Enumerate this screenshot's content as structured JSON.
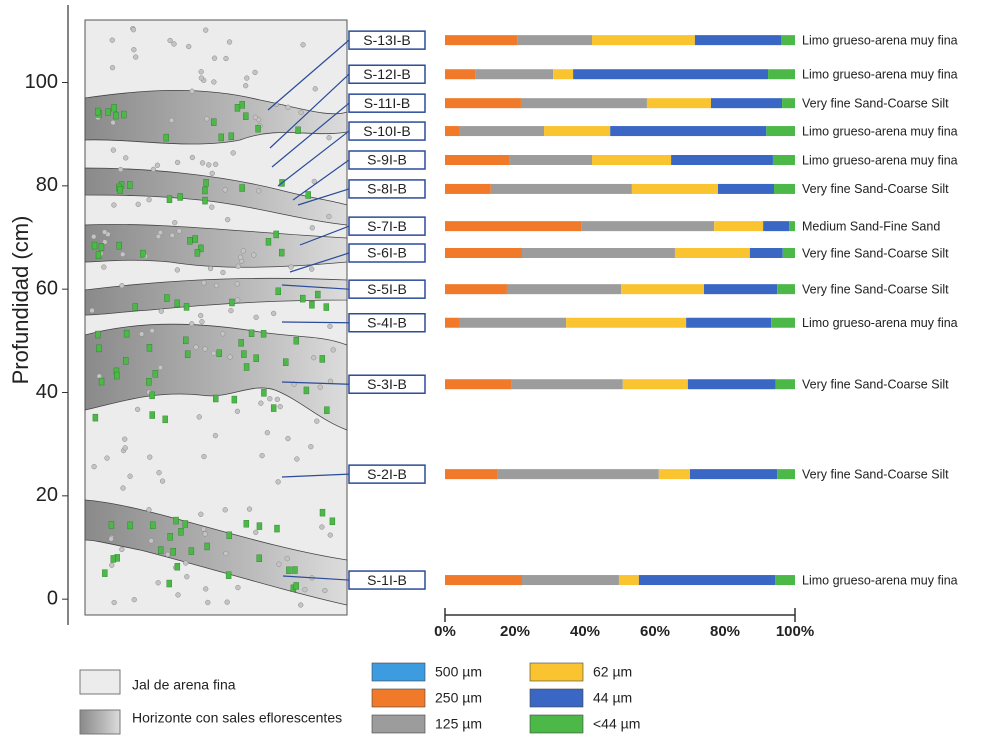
{
  "chart_data": {
    "type": "bar",
    "orientation": "horizontal",
    "stacked": true,
    "ylabel": "Profundidad (cm)",
    "ylim": [
      -5,
      115
    ],
    "yticks": [
      0,
      20,
      40,
      60,
      80,
      100
    ],
    "xlim": [
      0,
      100
    ],
    "xticks": [
      {
        "value": 0,
        "label": "0%"
      },
      {
        "value": 20,
        "label": "20%"
      },
      {
        "value": 40,
        "label": "40%"
      },
      {
        "value": 60,
        "label": "60%"
      },
      {
        "value": 80,
        "label": "80%"
      },
      {
        "value": 100,
        "label": "100%"
      }
    ],
    "categories": [
      "S-1I-B",
      "S-2I-B",
      "S-3I-B",
      "S-4I-B",
      "S-5I-B",
      "S-6I-B",
      "S-7I-B",
      "S-8I-B",
      "S-9I-B",
      "S-10I-B",
      "S-11I-B",
      "S-12I-B",
      "S-13I-B"
    ],
    "depths": [
      3.7,
      24.2,
      41.6,
      53.5,
      60.0,
      67.0,
      72.2,
      79.4,
      85.0,
      90.6,
      96.0,
      101.6,
      108.2
    ],
    "class_labels": [
      "Limo grueso-arena muy fina",
      "Very fine Sand-Coarse Silt",
      "Very fine Sand-Coarse Silt",
      "Limo grueso-arena muy fina",
      "Very fine Sand-Coarse Silt",
      "Very fine Sand-Coarse Silt",
      "Medium Sand-Fine Sand",
      "Very fine Sand-Coarse Silt",
      "Limo grueso-arena muy fina",
      "Limo grueso-arena muy fina",
      "Very fine Sand-Coarse Silt",
      "Limo grueso-arena muy fina",
      "Limo grueso-arena muy fina"
    ],
    "series": [
      {
        "name": "500 µm",
        "color": "#3d9be0",
        "values": [
          0,
          0,
          0,
          0,
          0,
          0,
          0,
          0,
          0,
          0,
          0,
          0,
          0
        ]
      },
      {
        "name": "250 µm",
        "color": "#f07a2a",
        "values": [
          22,
          15.1,
          19.1,
          4,
          17.7,
          22,
          38.9,
          13.1,
          18.3,
          4,
          21.7,
          8.6,
          20.6
        ]
      },
      {
        "name": "125 µm",
        "color": "#9c9c9c",
        "values": [
          27.7,
          46,
          31.7,
          30.6,
          32.6,
          43.7,
          38,
          40.3,
          23.7,
          24.3,
          36,
          22.3,
          21.4
        ]
      },
      {
        "name": "62 µm",
        "color": "#fac431",
        "values": [
          5.7,
          8.9,
          18.6,
          34.3,
          23.7,
          21.4,
          14,
          24.6,
          22.6,
          18.9,
          18.3,
          5.7,
          29.4
        ]
      },
      {
        "name": "44 µm",
        "color": "#3a66c4",
        "values": [
          38.9,
          24.9,
          25.1,
          24.3,
          20.9,
          9.4,
          7.4,
          16,
          29.1,
          44.6,
          20.3,
          55.7,
          24.6
        ]
      },
      {
        "name": "<44 µm",
        "color": "#4cb848",
        "values": [
          5.7,
          5.1,
          5.5,
          6.8,
          5.1,
          3.5,
          1.7,
          6,
          6.3,
          8.2,
          3.7,
          7.7,
          4
        ]
      }
    ]
  },
  "column_legend": [
    "Jal de arena fina",
    "Horizonte con sales eflorescentes"
  ]
}
